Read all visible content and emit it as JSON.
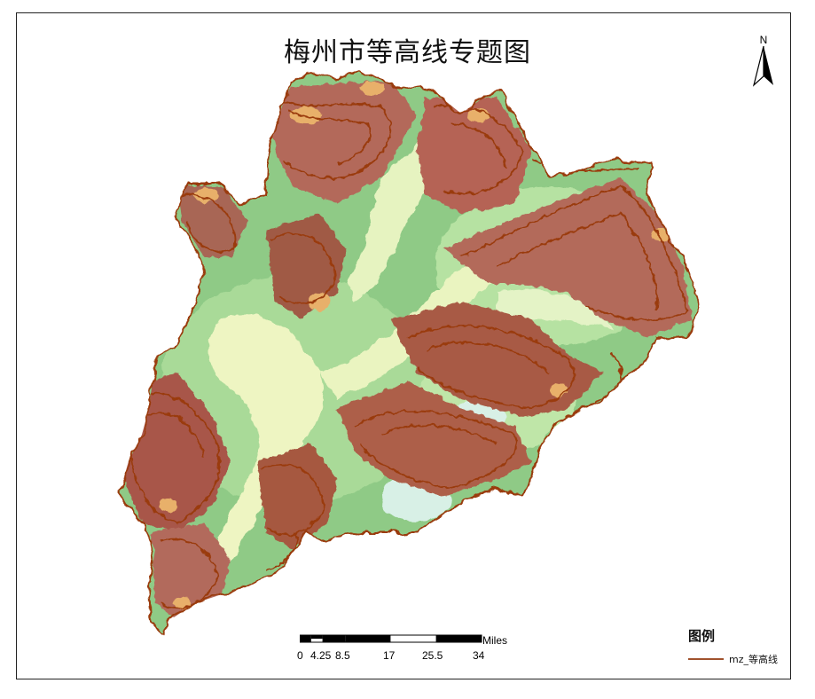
{
  "map": {
    "title": "梅州市等高线专题图",
    "north_label": "N",
    "scale": {
      "unit_label": "Miles",
      "ticks": [
        "0",
        "4.25",
        "8.5",
        "17",
        "25.5",
        "34"
      ]
    },
    "legend": {
      "title": "图例",
      "items": [
        {
          "label": "mz_等高线",
          "color": "#a0522d"
        }
      ]
    },
    "colors": {
      "contour": "#9a3a0a",
      "lowland": "#f2f5c4",
      "plain": "#c9e7a8",
      "midland": "#78c07c",
      "highland": "#b07a6a",
      "peak": "#e8b06a",
      "water": "#d8f0e6"
    }
  }
}
